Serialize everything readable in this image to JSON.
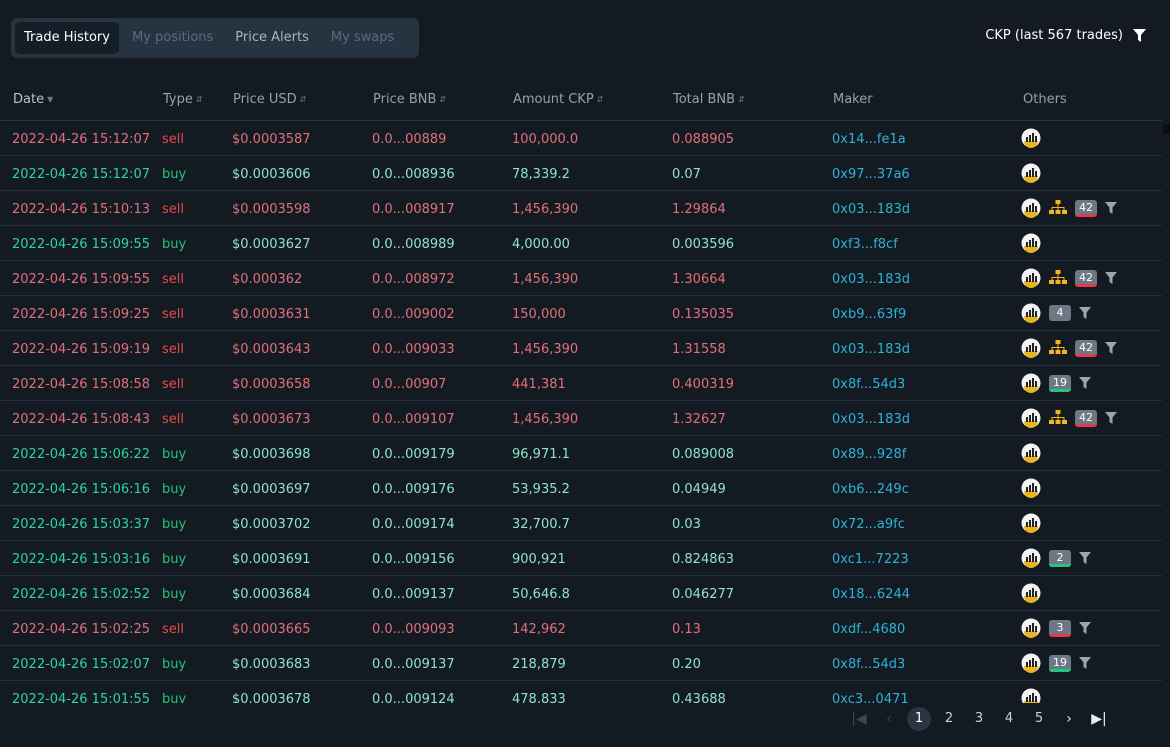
{
  "tabs": [
    {
      "label": "Trade History",
      "active": true
    },
    {
      "label": "My positions"
    },
    {
      "label": "Price Alerts"
    },
    {
      "label": "My swaps"
    }
  ],
  "summary": {
    "text": "CKP (last 567 trades)",
    "icon": "filter-icon"
  },
  "columns": [
    "Date",
    "Type",
    "Price USD",
    "Price BNB",
    "Amount CKP",
    "Total BNB",
    "Maker",
    "Others"
  ],
  "rows": [
    {
      "date": "2022-04-26 15:12:07",
      "type": "sell",
      "usd": "$0.0003587",
      "bnb": "0.0...00889",
      "amount": "100,000.0",
      "total": "0.088905",
      "maker": "0x14...fe1a",
      "badge": "",
      "badgeColor": "",
      "tree": false,
      "filter": false
    },
    {
      "date": "2022-04-26 15:12:07",
      "type": "buy",
      "usd": "$0.0003606",
      "bnb": "0.0...008936",
      "amount": "78,339.2",
      "total": "0.07",
      "maker": "0x97...37a6",
      "badge": "",
      "badgeColor": "",
      "tree": false,
      "filter": false
    },
    {
      "date": "2022-04-26 15:10:13",
      "type": "sell",
      "usd": "$0.0003598",
      "bnb": "0.0...008917",
      "amount": "1,456,390",
      "total": "1.29864",
      "maker": "0x03...183d",
      "badge": "42",
      "badgeColor": "red",
      "tree": true,
      "filter": true
    },
    {
      "date": "2022-04-26 15:09:55",
      "type": "buy",
      "usd": "$0.0003627",
      "bnb": "0.0...008989",
      "amount": "4,000.00",
      "total": "0.003596",
      "maker": "0xf3...f8cf",
      "badge": "",
      "badgeColor": "",
      "tree": false,
      "filter": false
    },
    {
      "date": "2022-04-26 15:09:55",
      "type": "sell",
      "usd": "$0.000362",
      "bnb": "0.0...008972",
      "amount": "1,456,390",
      "total": "1.30664",
      "maker": "0x03...183d",
      "badge": "42",
      "badgeColor": "red",
      "tree": true,
      "filter": true
    },
    {
      "date": "2022-04-26 15:09:25",
      "type": "sell",
      "usd": "$0.0003631",
      "bnb": "0.0...009002",
      "amount": "150,000",
      "total": "0.135035",
      "maker": "0xb9...63f9",
      "badge": "4",
      "badgeColor": "",
      "tree": false,
      "filter": true
    },
    {
      "date": "2022-04-26 15:09:19",
      "type": "sell",
      "usd": "$0.0003643",
      "bnb": "0.0...009033",
      "amount": "1,456,390",
      "total": "1.31558",
      "maker": "0x03...183d",
      "badge": "42",
      "badgeColor": "red",
      "tree": true,
      "filter": true
    },
    {
      "date": "2022-04-26 15:08:58",
      "type": "sell",
      "usd": "$0.0003658",
      "bnb": "0.0...00907",
      "amount": "441,381",
      "total": "0.400319",
      "maker": "0x8f...54d3",
      "badge": "19",
      "badgeColor": "green",
      "tree": false,
      "filter": true
    },
    {
      "date": "2022-04-26 15:08:43",
      "type": "sell",
      "usd": "$0.0003673",
      "bnb": "0.0...009107",
      "amount": "1,456,390",
      "total": "1.32627",
      "maker": "0x03...183d",
      "badge": "42",
      "badgeColor": "red",
      "tree": true,
      "filter": true
    },
    {
      "date": "2022-04-26 15:06:22",
      "type": "buy",
      "usd": "$0.0003698",
      "bnb": "0.0...009179",
      "amount": "96,971.1",
      "total": "0.089008",
      "maker": "0x89...928f",
      "badge": "",
      "badgeColor": "",
      "tree": false,
      "filter": false
    },
    {
      "date": "2022-04-26 15:06:16",
      "type": "buy",
      "usd": "$0.0003697",
      "bnb": "0.0...009176",
      "amount": "53,935.2",
      "total": "0.04949",
      "maker": "0xb6...249c",
      "badge": "",
      "badgeColor": "",
      "tree": false,
      "filter": false
    },
    {
      "date": "2022-04-26 15:03:37",
      "type": "buy",
      "usd": "$0.0003702",
      "bnb": "0.0...009174",
      "amount": "32,700.7",
      "total": "0.03",
      "maker": "0x72...a9fc",
      "badge": "",
      "badgeColor": "",
      "tree": false,
      "filter": false
    },
    {
      "date": "2022-04-26 15:03:16",
      "type": "buy",
      "usd": "$0.0003691",
      "bnb": "0.0...009156",
      "amount": "900,921",
      "total": "0.824863",
      "maker": "0xc1...7223",
      "badge": "2",
      "badgeColor": "green",
      "tree": false,
      "filter": true
    },
    {
      "date": "2022-04-26 15:02:52",
      "type": "buy",
      "usd": "$0.0003684",
      "bnb": "0.0...009137",
      "amount": "50,646.8",
      "total": "0.046277",
      "maker": "0x18...6244",
      "badge": "",
      "badgeColor": "",
      "tree": false,
      "filter": false
    },
    {
      "date": "2022-04-26 15:02:25",
      "type": "sell",
      "usd": "$0.0003665",
      "bnb": "0.0...009093",
      "amount": "142,962",
      "total": "0.13",
      "maker": "0xdf...4680",
      "badge": "3",
      "badgeColor": "red",
      "tree": false,
      "filter": true
    },
    {
      "date": "2022-04-26 15:02:07",
      "type": "buy",
      "usd": "$0.0003683",
      "bnb": "0.0...009137",
      "amount": "218,879",
      "total": "0.20",
      "maker": "0x8f...54d3",
      "badge": "19",
      "badgeColor": "green",
      "tree": false,
      "filter": true
    },
    {
      "date": "2022-04-26 15:01:55",
      "type": "buy",
      "usd": "$0.0003678",
      "bnb": "0.0...009124",
      "amount": "478,833",
      "total": "0.43688",
      "maker": "0xc3...0471",
      "badge": "",
      "badgeColor": "",
      "tree": false,
      "filter": false
    }
  ],
  "pagination": {
    "pages": [
      "1",
      "2",
      "3",
      "4",
      "5"
    ],
    "current": "1",
    "first": "|◀",
    "prev": "‹",
    "next": "›",
    "last": "▶|"
  }
}
